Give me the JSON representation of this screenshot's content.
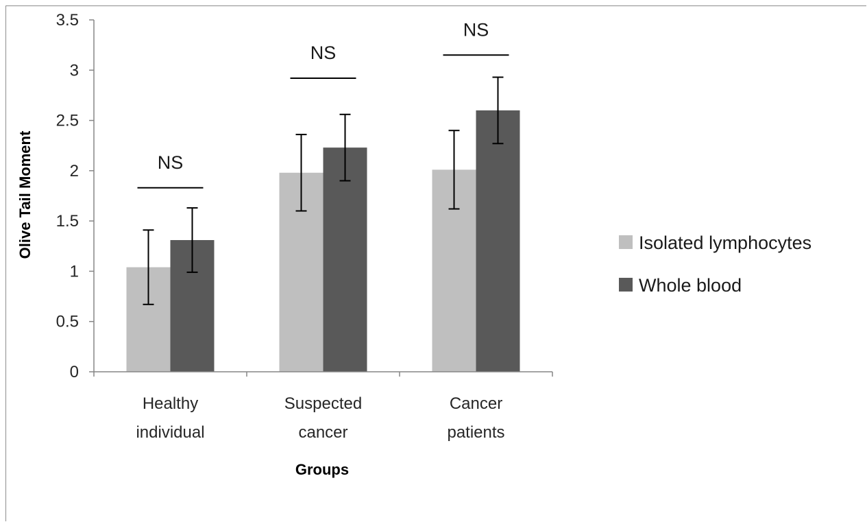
{
  "chart_data": {
    "type": "bar",
    "categories": [
      [
        "Healthy",
        "individual"
      ],
      [
        "Suspected",
        "cancer"
      ],
      [
        "Cancer",
        "patients"
      ]
    ],
    "series": [
      {
        "name": "Isolated lymphocytes",
        "color": "#bfbfbf",
        "values": [
          1.04,
          1.98,
          2.01
        ],
        "errors": [
          0.37,
          0.38,
          0.39
        ]
      },
      {
        "name": "Whole blood",
        "color": "#595959",
        "values": [
          1.31,
          2.23,
          2.6
        ],
        "errors": [
          0.32,
          0.33,
          0.33
        ]
      }
    ],
    "xlabel": "Groups",
    "ylabel": "Olive Tail Moment",
    "ylim": [
      0,
      3.5
    ],
    "yticks": [
      "0",
      "0.5",
      "1",
      "1.5",
      "2",
      "2.5",
      "3",
      "3.5"
    ],
    "annotations": [
      {
        "text": "NS",
        "category": 0,
        "line_y": 1.83
      },
      {
        "text": "NS",
        "category": 1,
        "line_y": 2.92
      },
      {
        "text": "NS",
        "category": 2,
        "line_y": 3.15
      }
    ],
    "grid": false,
    "legend_position": "right"
  }
}
